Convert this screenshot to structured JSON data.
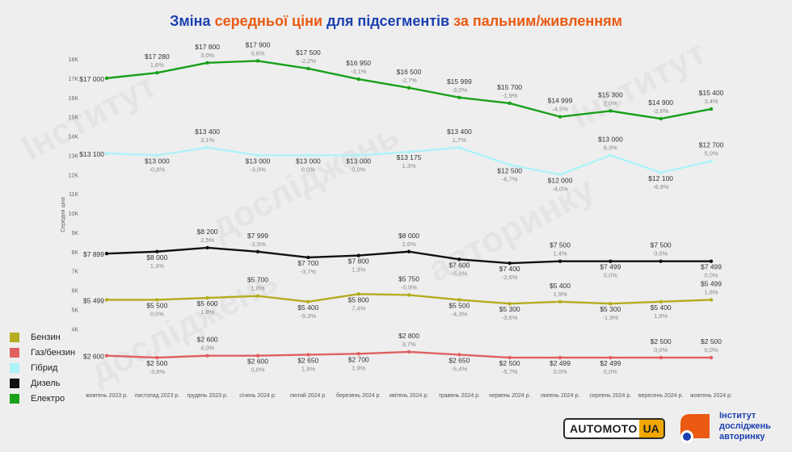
{
  "title": {
    "part1": "Зміна",
    "part2": "середньої ціни",
    "part3": "для підсегментів",
    "part4": "за пальним/живленням"
  },
  "watermark": {
    "line1": "Інститут",
    "line2": "досліджень",
    "line3": "авторинку"
  },
  "brand": {
    "automoto_main": "AUTOMOTO",
    "automoto_suffix": "UA",
    "institute_line1": "Інститут",
    "institute_line2": "досліджень",
    "institute_line3": "авторинку"
  },
  "colors": {
    "title_blue": "#1a3fb0",
    "title_orange": "#ea5a12",
    "benzin": "#b5ac1f",
    "gas": "#e06060",
    "hybrid": "#aef3f9",
    "diesel": "#111111",
    "electro": "#1aa01a",
    "brand_yellow": "#f0a800"
  },
  "chart_data": {
    "type": "line",
    "ylabel": "Середня ціна",
    "ylim": [
      2000,
      18000
    ],
    "yticks": [
      4000,
      5000,
      6000,
      7000,
      8000,
      9000,
      10000,
      11000,
      12000,
      13000,
      14000,
      15000,
      16000,
      17000,
      18000
    ],
    "ytick_labels": [
      "4K",
      "5K",
      "6K",
      "7K",
      "8K",
      "9K",
      "10K",
      "11K",
      "12K",
      "13K",
      "14K",
      "15K",
      "16K",
      "17K",
      "18K"
    ],
    "grid": false,
    "legend_position": "left",
    "categories": [
      "жовтень 2023 р.",
      "листопад 2023 р.",
      "грудень 2023 р.",
      "січень 2024 р.",
      "лютий 2024 р.",
      "березень 2024 р.",
      "квітень 2024 р.",
      "травень 2024 р.",
      "червень 2024 р.",
      "липень 2024 р.",
      "серпень 2024 р.",
      "вересень 2024 р.",
      "жовтень 2024 р."
    ],
    "series": [
      {
        "name": "Електро",
        "color": "#1aa01a",
        "values": [
          17000,
          17280,
          17800,
          17900,
          17500,
          16950,
          16500,
          15999,
          15700,
          14999,
          15300,
          14900,
          15400
        ],
        "value_labels": [
          "$17 000",
          "$17 280",
          "$17 800",
          "$17 900",
          "$17 500",
          "$16 950",
          "$16 500",
          "$15 999",
          "$15 700",
          "$14 999",
          "$15 300",
          "$14 900",
          "$15 400"
        ],
        "change_labels": [
          "",
          "1,6%",
          "3,0%",
          "0,6%",
          "-2,2%",
          "-3,1%",
          "-2,7%",
          "-3,0%",
          "-1,9%",
          "-4,5%",
          "2,0%",
          "-2,6%",
          "3,4%"
        ]
      },
      {
        "name": "Гібрид",
        "color": "#aef3f9",
        "values": [
          13100,
          13000,
          13400,
          13000,
          13000,
          13000,
          13175,
          13400,
          12500,
          12000,
          13000,
          12100,
          12700
        ],
        "value_labels": [
          "$13 100",
          "$13 000",
          "$13 400",
          "$13 000",
          "$13 000",
          "$13 000",
          "$13 175",
          "$13 400",
          "$12 500",
          "$12 000",
          "$13 000",
          "$12 100",
          "$12 700"
        ],
        "change_labels": [
          "",
          "-0,8%",
          "3,1%",
          "-3,0%",
          "0,0%",
          "0,0%",
          "1,3%",
          "1,7%",
          "-6,7%",
          "-4,0%",
          "8,3%",
          "-6,9%",
          "5,0%"
        ]
      },
      {
        "name": "Дизель",
        "color": "#111111",
        "values": [
          7899,
          8000,
          8200,
          7999,
          7700,
          7800,
          8000,
          7600,
          7400,
          7500,
          7499,
          7500,
          7499
        ],
        "value_labels": [
          "$7 899",
          "$8 000",
          "$8 200",
          "$7 999",
          "$7 700",
          "$7 800",
          "$8 000",
          "$7 600",
          "$7 400",
          "$7 500",
          "$7 499",
          "$7 500",
          "$7 499"
        ],
        "change_labels": [
          "",
          "1,3%",
          "2,5%",
          "-2,5%",
          "-3,7%",
          "1,3%",
          "2,6%",
          "-5,0%",
          "-2,6%",
          "1,4%",
          "0,0%",
          "0,0%",
          "0,0%"
        ]
      },
      {
        "name": "Бензин",
        "color": "#b5ac1f",
        "values": [
          5499,
          5500,
          5600,
          5700,
          5400,
          5800,
          5750,
          5500,
          5300,
          5400,
          5300,
          5400,
          5499
        ],
        "value_labels": [
          "$5 499",
          "$5 500",
          "$5 600",
          "$5 700",
          "$5 400",
          "$5 800",
          "$5 750",
          "$5 500",
          "$5 300",
          "$5 400",
          "$5 300",
          "$5 400",
          "$5 499"
        ],
        "change_labels": [
          "",
          "0,0%",
          "1,8%",
          "1,8%",
          "-5,3%",
          "7,4%",
          "-0,9%",
          "-4,3%",
          "-3,6%",
          "1,9%",
          "-1,9%",
          "1,9%",
          "1,8%"
        ]
      },
      {
        "name": "Газ/бензин",
        "color": "#e06060",
        "values": [
          2600,
          2500,
          2600,
          2600,
          2650,
          2700,
          2800,
          2650,
          2500,
          2499,
          2499,
          2500,
          2500
        ],
        "value_labels": [
          "$2 600",
          "$2 500",
          "$2 600",
          "$2 600",
          "$2 650",
          "$2 700",
          "$2 800",
          "$2 650",
          "$2 500",
          "$2 499",
          "$2 499",
          "$2 500",
          "$2 500"
        ],
        "change_labels": [
          "",
          "-3,8%",
          "4,0%",
          "0,0%",
          "1,9%",
          "1,9%",
          "3,7%",
          "-5,4%",
          "-5,7%",
          "0,0%",
          "0,0%",
          "0,0%",
          "0,0%"
        ]
      }
    ],
    "legend_order": [
      "Бензин",
      "Газ/бензин",
      "Гібрид",
      "Дизель",
      "Електро"
    ]
  }
}
